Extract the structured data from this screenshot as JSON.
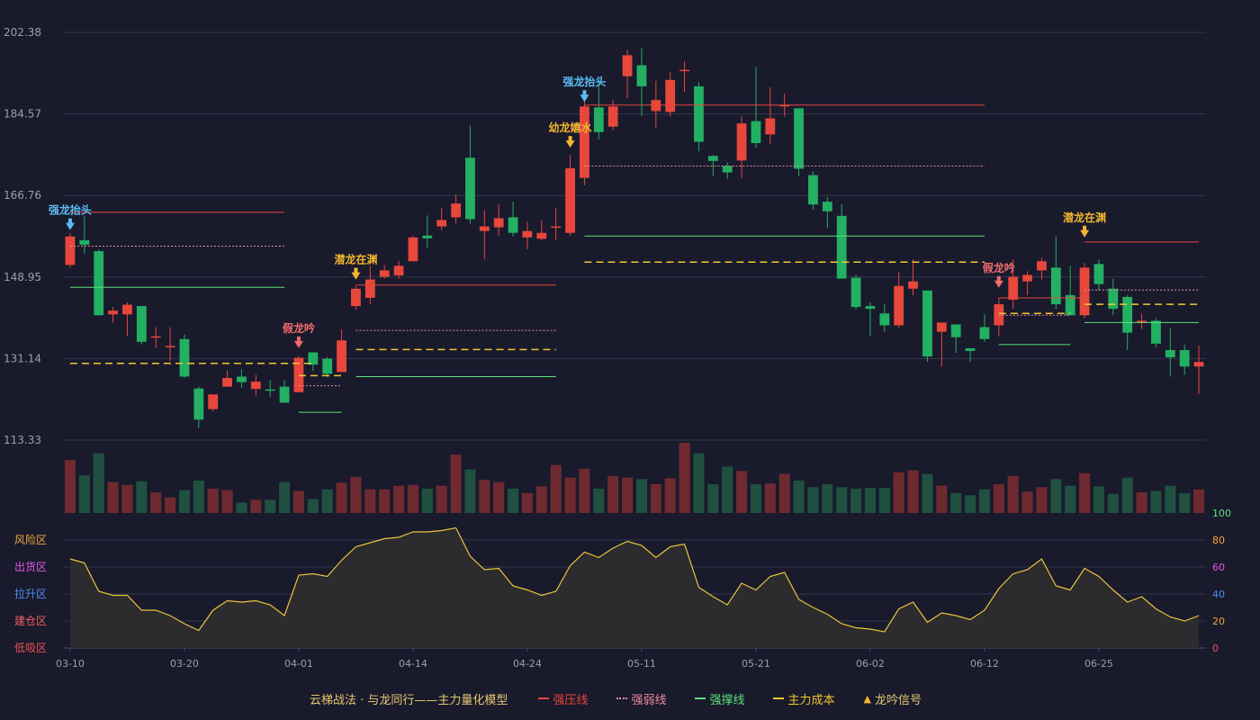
{
  "legend": {
    "title": "云梯战法 · 与龙同行——主力量化模型",
    "items": [
      {
        "label": "强压线",
        "color": "#e8473c",
        "style": "solid"
      },
      {
        "label": "强弱线",
        "color": "#f08aa0",
        "style": "dotted"
      },
      {
        "label": "强撑线",
        "color": "#5ee07a",
        "style": "solid"
      },
      {
        "label": "主力成本",
        "color": "#f3c82f",
        "style": "dashed"
      },
      {
        "label": "龙吟信号",
        "color": "#f3b62f",
        "style": "triangle"
      }
    ]
  },
  "colors": {
    "up": "#e8473c",
    "down": "#22b063",
    "vol_up": "#6e2a30",
    "vol_down": "#1f5040",
    "grid": "#33364a",
    "axis_text": "#9aa0b0",
    "osc_line": "#e8c43c",
    "osc_fill": "#2f2d2d"
  },
  "chart_data": [
    {
      "type": "candlestick",
      "title": "",
      "ylim": [
        113.33,
        202.38
      ],
      "y_ticks": [
        202.38,
        184.57,
        166.76,
        148.95,
        131.14,
        113.33
      ],
      "x_ticks": [
        {
          "label": "03-10",
          "index": 0
        },
        {
          "label": "03-20",
          "index": 8
        },
        {
          "label": "04-01",
          "index": 16
        },
        {
          "label": "04-14",
          "index": 24
        },
        {
          "label": "04-24",
          "index": 32
        },
        {
          "label": "05-11",
          "index": 40
        },
        {
          "label": "05-21",
          "index": 48
        },
        {
          "label": "06-02",
          "index": 56
        },
        {
          "label": "06-12",
          "index": 64
        },
        {
          "label": "06-25",
          "index": 72
        }
      ],
      "ohlc": [
        [
          151.6,
          157.8,
          158.5,
          151.0
        ],
        [
          157.0,
          156.0,
          162.2,
          154.0
        ],
        [
          154.6,
          140.6,
          155.0,
          140.6
        ],
        [
          140.8,
          141.6,
          142.4,
          139.0
        ],
        [
          140.8,
          142.9,
          143.4,
          136.0
        ],
        [
          142.6,
          134.8,
          142.6,
          134.2
        ],
        [
          135.8,
          136.0,
          138.0,
          133.4
        ],
        [
          133.9,
          133.9,
          138.0,
          130.6
        ],
        [
          135.4,
          127.2,
          136.4,
          126.9
        ],
        [
          124.6,
          117.8,
          125.0,
          116.0
        ],
        [
          120.1,
          123.3,
          123.3,
          119.6
        ],
        [
          125.0,
          126.9,
          128.5,
          125.0
        ],
        [
          127.2,
          126.0,
          128.8,
          124.8
        ],
        [
          124.5,
          126.1,
          127.6,
          123.0
        ],
        [
          124.4,
          124.2,
          126.4,
          122.8
        ],
        [
          125.0,
          121.5,
          126.4,
          121.5
        ],
        [
          123.8,
          131.3,
          131.7,
          123.8
        ],
        [
          132.5,
          129.8,
          132.5,
          128.4
        ],
        [
          131.1,
          127.8,
          131.5,
          127.0
        ],
        [
          128.2,
          135.1,
          137.5,
          128.2
        ],
        [
          142.6,
          146.4,
          147.0,
          141.8
        ],
        [
          144.4,
          148.4,
          151.4,
          143.0
        ],
        [
          149.0,
          150.4,
          151.6,
          148.6
        ],
        [
          149.3,
          151.4,
          152.5,
          148.6
        ],
        [
          152.4,
          157.6,
          158.0,
          152.4
        ],
        [
          158.0,
          157.4,
          162.4,
          155.4
        ],
        [
          160.0,
          161.4,
          164.0,
          159.2
        ],
        [
          162.0,
          165.0,
          167.0,
          160.6
        ],
        [
          175.0,
          161.6,
          182.0,
          160.6
        ],
        [
          159.0,
          160.0,
          163.6,
          152.8
        ],
        [
          159.8,
          161.8,
          164.8,
          158.0
        ],
        [
          162.0,
          158.6,
          165.4,
          157.8
        ],
        [
          157.6,
          159.0,
          161.0,
          155.0
        ],
        [
          157.3,
          158.6,
          161.4,
          157.0
        ],
        [
          160.0,
          160.0,
          164.0,
          157.0
        ],
        [
          158.6,
          172.7,
          175.6,
          158.0
        ],
        [
          170.6,
          186.2,
          189.2,
          169.0
        ],
        [
          186.0,
          180.6,
          192.0,
          179.0
        ],
        [
          181.8,
          186.2,
          187.6,
          181.0
        ],
        [
          192.8,
          197.4,
          198.6,
          188.0
        ],
        [
          195.2,
          190.6,
          199.0,
          184.2
        ],
        [
          185.2,
          187.6,
          191.8,
          181.6
        ],
        [
          185.0,
          192.0,
          193.8,
          184.0
        ],
        [
          194.0,
          194.2,
          196.0,
          189.4
        ],
        [
          190.6,
          178.5,
          191.5,
          176.4
        ],
        [
          175.4,
          174.3,
          175.6,
          171.0
        ],
        [
          173.2,
          171.8,
          174.0,
          170.4
        ],
        [
          174.4,
          182.5,
          184.0,
          170.6
        ],
        [
          183.0,
          178.2,
          194.8,
          177.2
        ],
        [
          180.1,
          183.6,
          190.4,
          178.0
        ],
        [
          186.4,
          186.5,
          189.0,
          184.0
        ],
        [
          185.8,
          172.6,
          185.8,
          171.0
        ],
        [
          171.2,
          164.8,
          172.0,
          163.6
        ],
        [
          165.4,
          163.3,
          166.4,
          159.6
        ],
        [
          162.3,
          148.6,
          164.8,
          148.6
        ],
        [
          148.8,
          142.4,
          149.4,
          141.8
        ],
        [
          142.6,
          142.0,
          143.4,
          136.0
        ],
        [
          141.0,
          138.4,
          143.0,
          137.0
        ],
        [
          138.4,
          147.0,
          150.0,
          137.8
        ],
        [
          146.4,
          148.0,
          152.8,
          145.0
        ],
        [
          146.0,
          131.6,
          146.0,
          130.4
        ],
        [
          137.0,
          139.0,
          139.0,
          129.4
        ],
        [
          138.6,
          135.8,
          138.6,
          132.4
        ],
        [
          133.4,
          132.8,
          133.4,
          130.4
        ],
        [
          138.0,
          135.4,
          140.8,
          134.8
        ],
        [
          138.4,
          143.0,
          144.4,
          136.0
        ],
        [
          144.0,
          149.0,
          152.8,
          142.0
        ],
        [
          148.0,
          149.4,
          150.2,
          145.0
        ],
        [
          150.4,
          152.4,
          153.2,
          148.4
        ],
        [
          151.0,
          143.0,
          157.8,
          142.0
        ],
        [
          145.0,
          140.6,
          151.4,
          140.6
        ],
        [
          140.6,
          151.0,
          152.0,
          140.0
        ],
        [
          151.8,
          147.4,
          152.8,
          146.0
        ],
        [
          146.4,
          142.0,
          148.6,
          140.6
        ],
        [
          144.6,
          136.8,
          145.0,
          133.0
        ],
        [
          139.0,
          139.4,
          141.0,
          137.6
        ],
        [
          139.4,
          134.4,
          140.0,
          133.6
        ],
        [
          133.0,
          131.4,
          137.8,
          127.2
        ],
        [
          133.0,
          129.4,
          134.2,
          127.6
        ],
        [
          129.4,
          130.4,
          134.0,
          123.4
        ]
      ],
      "volume": [
        0.72,
        0.51,
        0.81,
        0.42,
        0.38,
        0.43,
        0.28,
        0.21,
        0.31,
        0.44,
        0.33,
        0.31,
        0.14,
        0.18,
        0.18,
        0.42,
        0.3,
        0.19,
        0.32,
        0.41,
        0.49,
        0.32,
        0.32,
        0.37,
        0.38,
        0.33,
        0.37,
        0.79,
        0.59,
        0.45,
        0.42,
        0.33,
        0.27,
        0.36,
        0.65,
        0.48,
        0.6,
        0.33,
        0.5,
        0.48,
        0.46,
        0.39,
        0.47,
        0.95,
        0.81,
        0.39,
        0.63,
        0.57,
        0.39,
        0.4,
        0.53,
        0.44,
        0.35,
        0.39,
        0.35,
        0.33,
        0.34,
        0.34,
        0.55,
        0.58,
        0.53,
        0.37,
        0.27,
        0.24,
        0.32,
        0.39,
        0.5,
        0.29,
        0.35,
        0.46,
        0.37,
        0.54,
        0.36,
        0.26,
        0.48,
        0.28,
        0.3,
        0.37,
        0.27,
        0.32
      ],
      "signals": [
        {
          "index": 0,
          "text": "强龙抬头",
          "color": "#5bbcf2",
          "price": 159.2
        },
        {
          "index": 16,
          "text": "假龙吟",
          "color": "#f06a6a",
          "price": 133.4
        },
        {
          "index": 20,
          "text": "潜龙在渊",
          "color": "#f3b62f",
          "price": 148.4
        },
        {
          "index": 35,
          "text": "幼龙嬉水",
          "color": "#f3b62f",
          "price": 177.2
        },
        {
          "index": 36,
          "text": "强龙抬头",
          "color": "#5bbcf2",
          "price": 187.2
        },
        {
          "index": 65,
          "text": "假龙吟",
          "color": "#f06a6a",
          "price": 146.6
        },
        {
          "index": 71,
          "text": "潜龙在渊",
          "color": "#f3b62f",
          "price": 157.6
        }
      ],
      "levels": [
        {
          "kind": "强压线",
          "from": 0,
          "to": 15,
          "price": 163.1
        },
        {
          "kind": "强弱线",
          "from": 0,
          "to": 15,
          "price": 155.7
        },
        {
          "kind": "强撑线",
          "from": 0,
          "to": 15,
          "price": 146.7
        },
        {
          "kind": "主力成本",
          "from": 0,
          "to": 17,
          "price": 130.1
        },
        {
          "kind": "强弱线",
          "from": 16,
          "to": 19,
          "price": 125.2
        },
        {
          "kind": "强撑线",
          "from": 16,
          "to": 19,
          "price": 119.4
        },
        {
          "kind": "主力成本",
          "from": 16,
          "to": 19,
          "price": 127.4
        },
        {
          "kind": "强压线",
          "from": 20,
          "to": 34,
          "price": 147.2
        },
        {
          "kind": "强弱线",
          "from": 20,
          "to": 34,
          "price": 137.3
        },
        {
          "kind": "主力成本",
          "from": 20,
          "to": 34,
          "price": 133.1
        },
        {
          "kind": "强撑线",
          "from": 20,
          "to": 34,
          "price": 127.2
        },
        {
          "kind": "强压线",
          "from": 36,
          "to": 64,
          "price": 186.5
        },
        {
          "kind": "强弱线",
          "from": 36,
          "to": 64,
          "price": 173.2
        },
        {
          "kind": "强撑线",
          "from": 36,
          "to": 64,
          "price": 157.9
        },
        {
          "kind": "主力成本",
          "from": 36,
          "to": 64,
          "price": 152.2
        },
        {
          "kind": "强压线",
          "from": 65,
          "to": 71,
          "price": 144.4
        },
        {
          "kind": "强弱线",
          "from": 65,
          "to": 70,
          "price": 140.6
        },
        {
          "kind": "主力成本",
          "from": 65,
          "to": 70,
          "price": 141.0
        },
        {
          "kind": "强撑线",
          "from": 65,
          "to": 70,
          "price": 134.2
        },
        {
          "kind": "强压线",
          "from": 71,
          "to": 79,
          "price": 156.6
        },
        {
          "kind": "强弱线",
          "from": 71,
          "to": 79,
          "price": 146.1
        },
        {
          "kind": "主力成本",
          "from": 71,
          "to": 79,
          "price": 143.0
        },
        {
          "kind": "强撑线",
          "from": 71,
          "to": 79,
          "price": 139.0
        }
      ]
    },
    {
      "type": "area",
      "title": "",
      "ylim": [
        0,
        100
      ],
      "right_ticks": [
        {
          "value": 100,
          "color": "#5ee07a"
        },
        {
          "value": 80,
          "color": "#f3a83c"
        },
        {
          "value": 60,
          "color": "#e058e0"
        },
        {
          "value": 40,
          "color": "#4d8ef0"
        },
        {
          "value": 20,
          "color": "#f3a83c"
        },
        {
          "value": 0,
          "color": "#f05050"
        }
      ],
      "zones": [
        {
          "label": "风险区",
          "value": 80,
          "color": "#f3a83c"
        },
        {
          "label": "出货区",
          "value": 60,
          "color": "#e058e0"
        },
        {
          "label": "拉升区",
          "value": 40,
          "color": "#4d8ef0"
        },
        {
          "label": "建仓区",
          "value": 20,
          "color": "#f06060"
        },
        {
          "label": "低吸区",
          "value": 0,
          "color": "#f05050"
        }
      ],
      "values": [
        66,
        63,
        42,
        39,
        39,
        28,
        28,
        24,
        18,
        13,
        28,
        35,
        34,
        35,
        32,
        24,
        54,
        55,
        53,
        65,
        75,
        78,
        81,
        82,
        86,
        86,
        87,
        89,
        68,
        58,
        59,
        46,
        43,
        39,
        42,
        61,
        71,
        67,
        74,
        79,
        76,
        67,
        75,
        77,
        45,
        38,
        32,
        48,
        43,
        53,
        56,
        36,
        30,
        25,
        18,
        15,
        14,
        12,
        29,
        34,
        19,
        26,
        24,
        21,
        28,
        44,
        55,
        58,
        66,
        46,
        43,
        59,
        53,
        43,
        34,
        38,
        29,
        23,
        20,
        24
      ]
    }
  ]
}
